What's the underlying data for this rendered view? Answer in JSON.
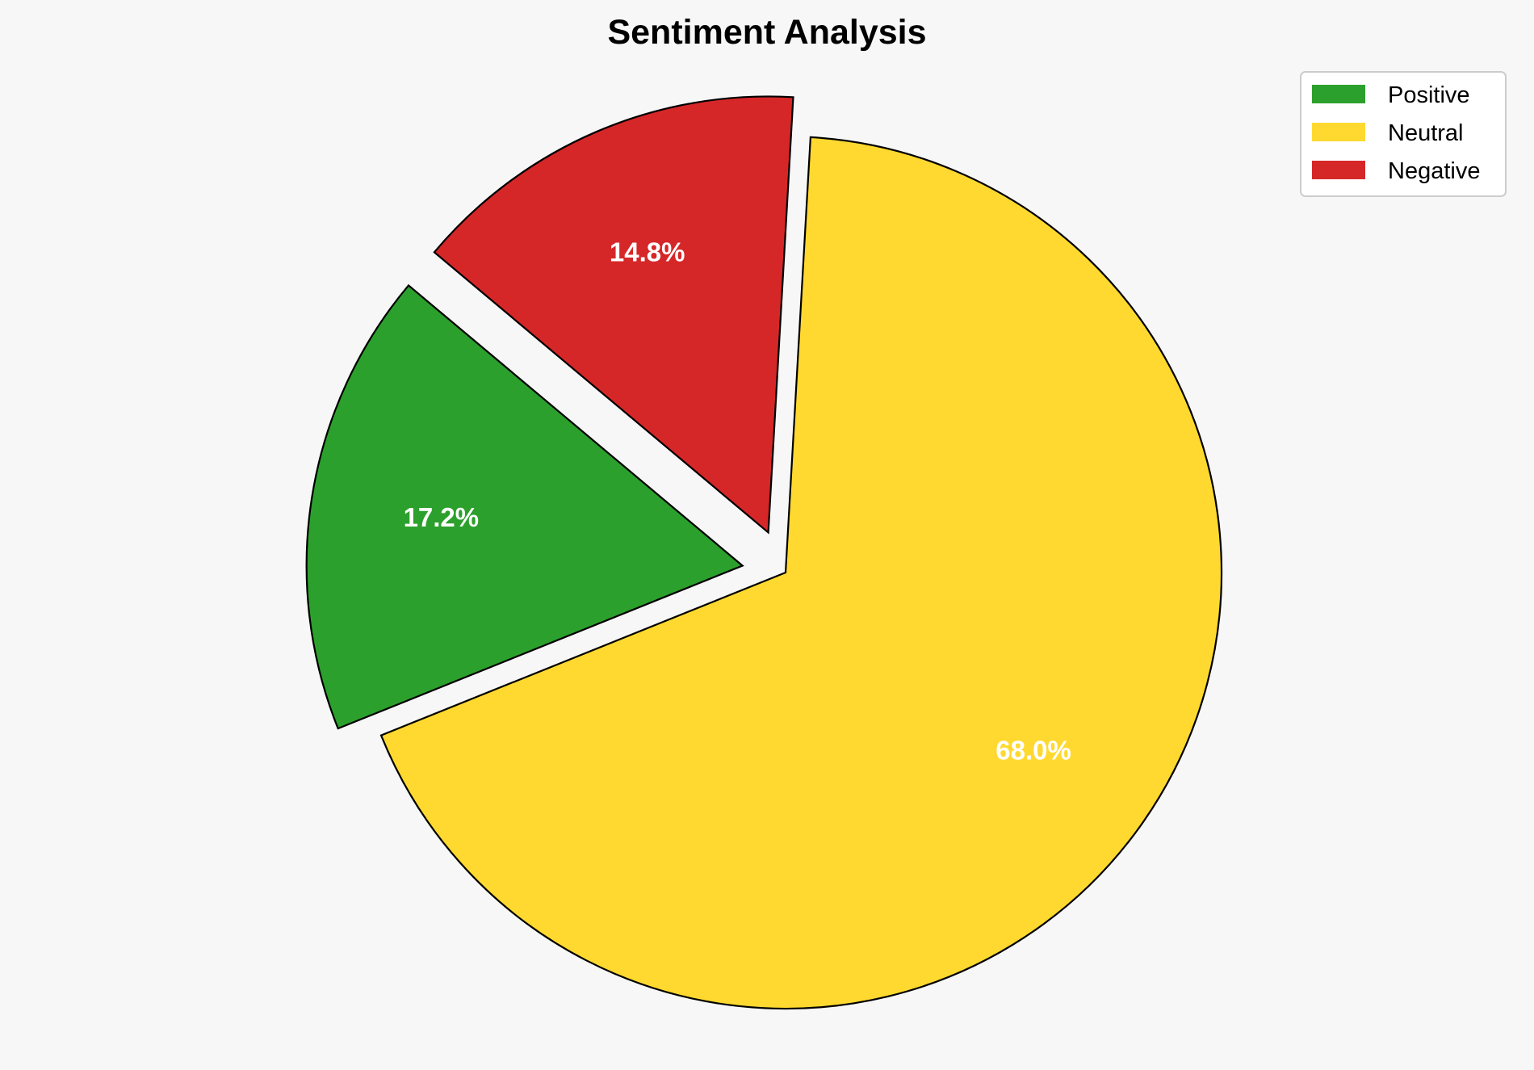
{
  "chart_data": {
    "type": "pie",
    "title": "Sentiment Analysis",
    "categories": [
      "Positive",
      "Neutral",
      "Negative"
    ],
    "values": [
      17.2,
      68.0,
      14.8
    ],
    "labels": [
      "17.2%",
      "68.0%",
      "14.8%"
    ],
    "colors": [
      "#2ca02c",
      "#ffd92f",
      "#d62728"
    ],
    "explode": [
      0.1,
      0,
      0.1
    ],
    "start_angle": 140,
    "direction": "counterclockwise",
    "edge_color": "#000000",
    "background": "#f7f7f7",
    "legend_position": "top-right"
  }
}
